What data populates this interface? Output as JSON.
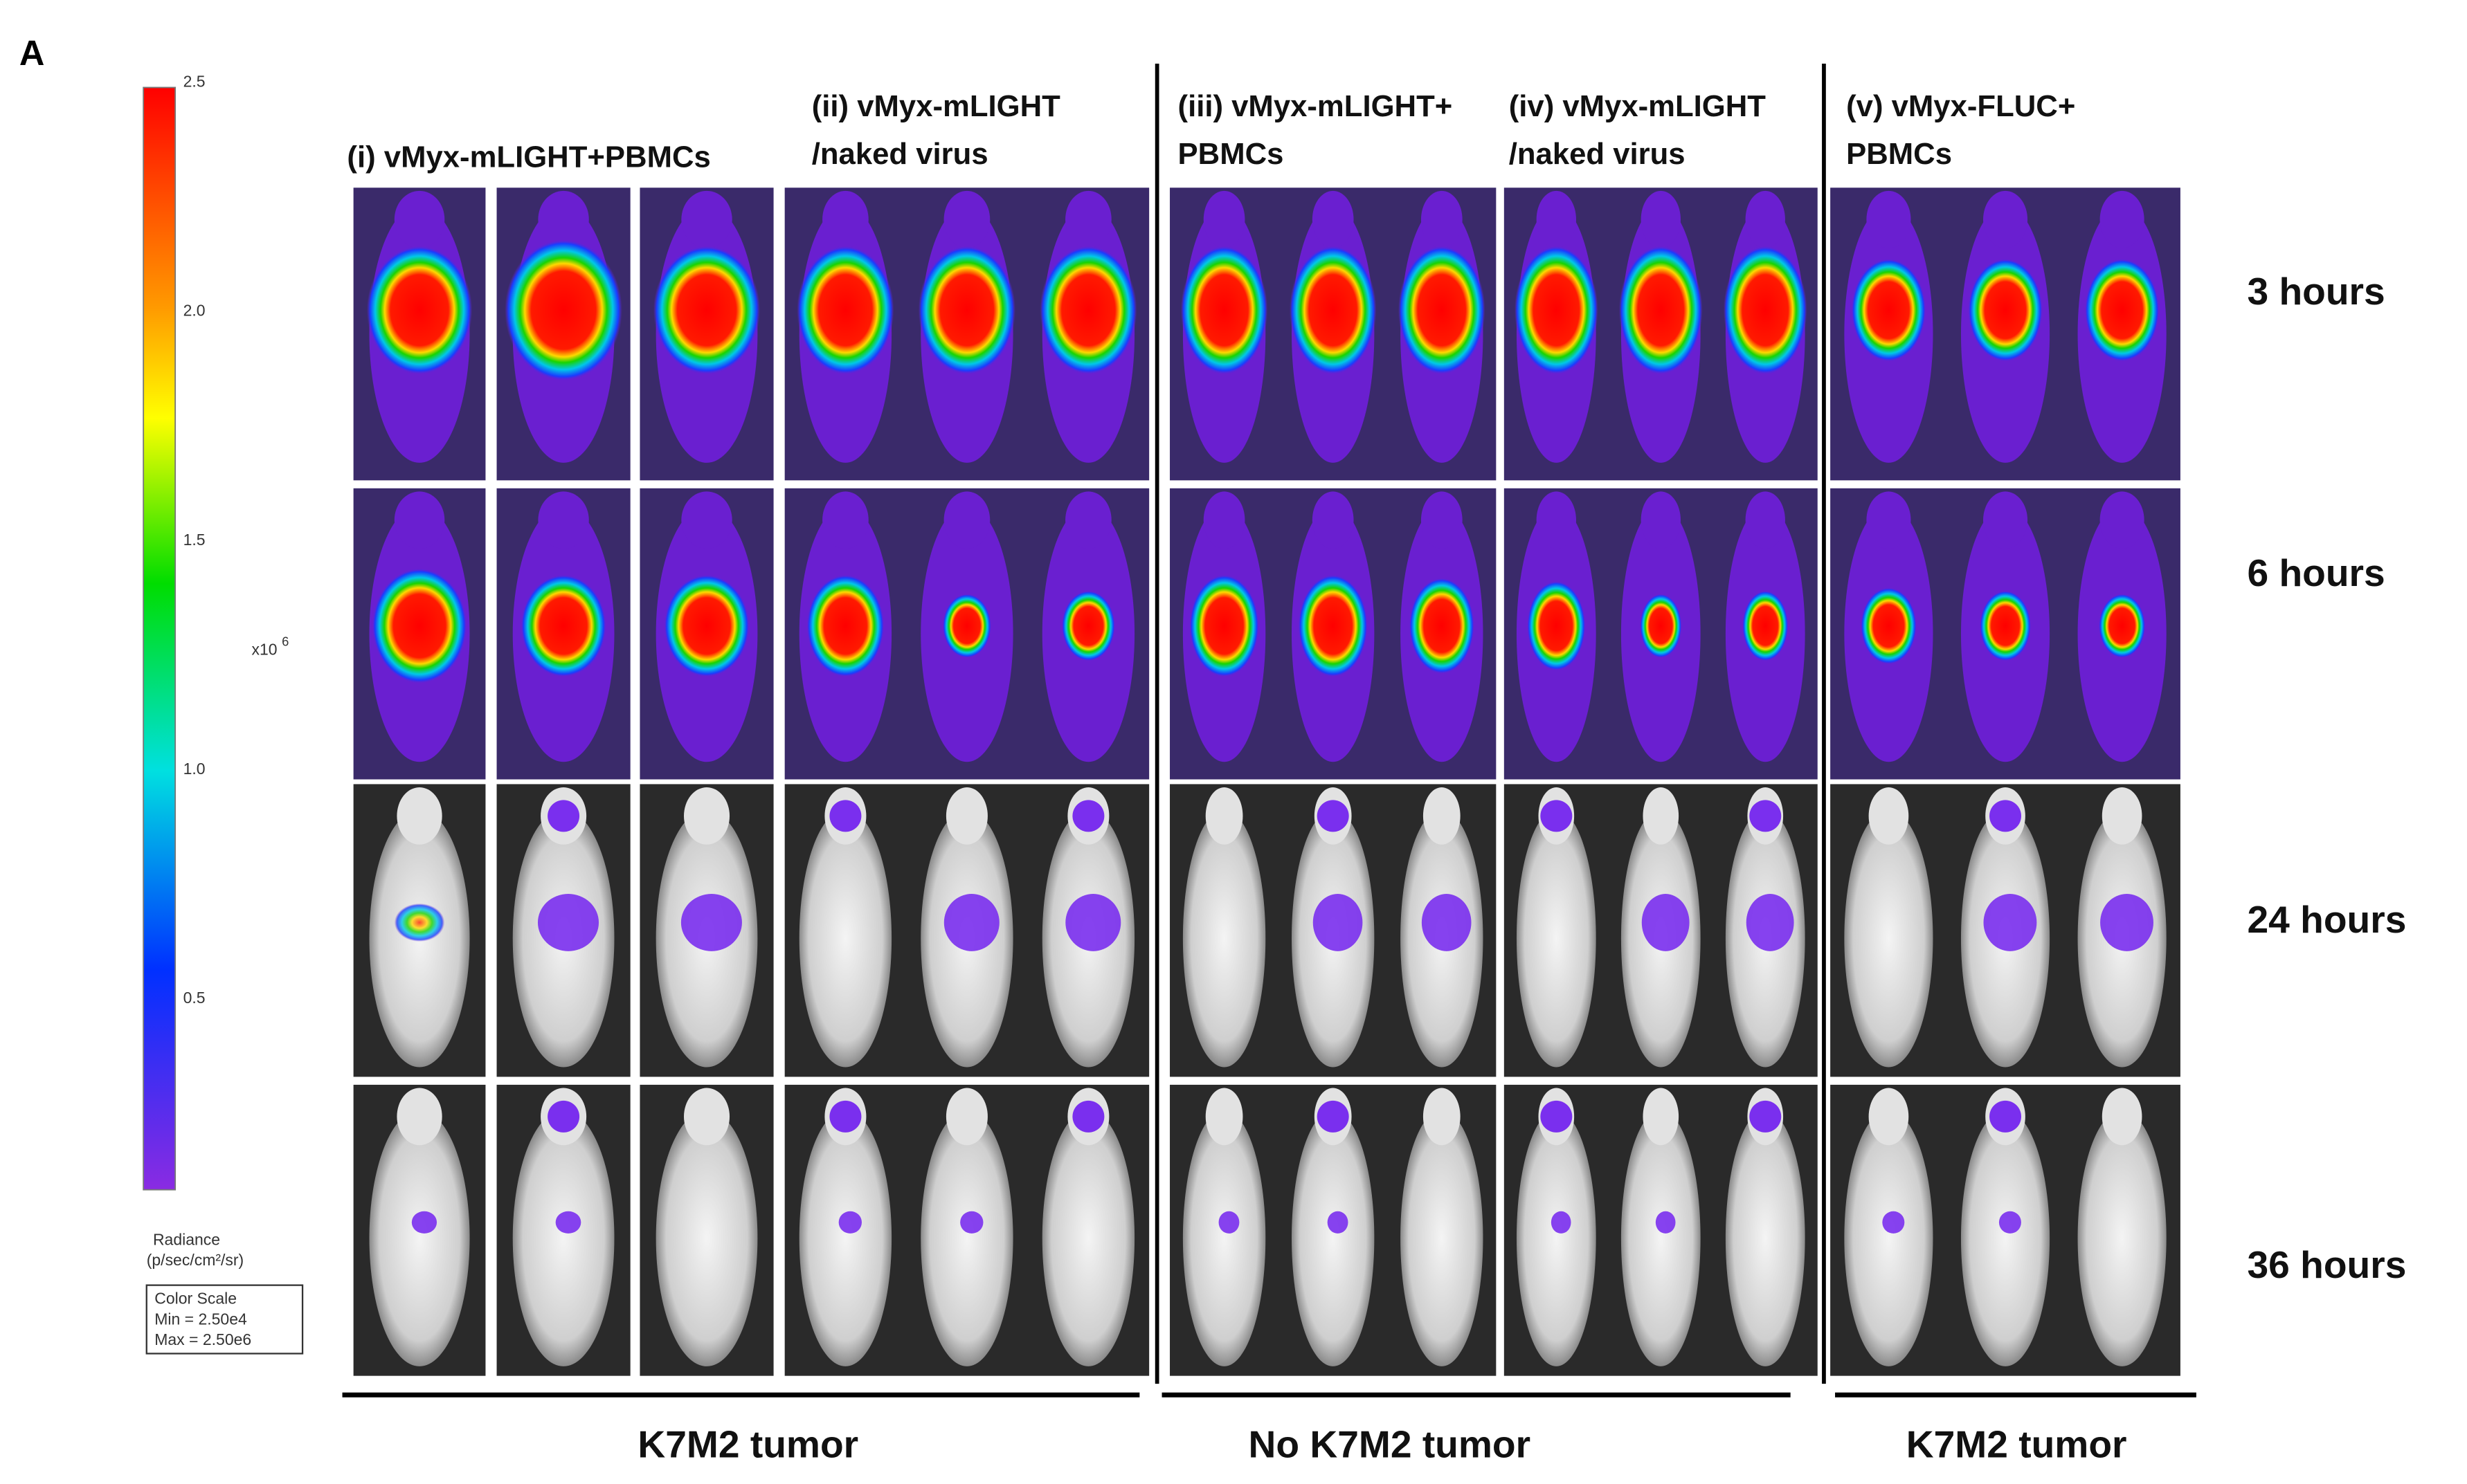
{
  "panel_label": "A",
  "color_bar": {
    "ticks": [
      "2.5",
      "2.0",
      "1.5",
      "1.0",
      "0.5"
    ],
    "multiplier": "x10",
    "exponent": "6",
    "unit_label": "Radiance",
    "unit": "(p/sec/cm²/sr)",
    "scale_box": [
      "Color Scale",
      "Min = 2.50e4",
      "Max = 2.50e6"
    ]
  },
  "groups": [
    {
      "lines": [
        "(i) vMyx-mLIGHT+PBMCs"
      ]
    },
    {
      "lines": [
        "(ii) vMyx-mLIGHT",
        "/naked virus"
      ]
    },
    {
      "lines": [
        "(iii) vMyx-mLIGHT+",
        "PBMCs"
      ]
    },
    {
      "lines": [
        "(iv) vMyx-mLIGHT",
        "/naked virus"
      ]
    },
    {
      "lines": [
        "(v) vMyx-FLUC+",
        "PBMCs"
      ]
    }
  ],
  "timepoints": [
    "3 hours",
    "6 hours",
    "24 hours",
    "36 hours"
  ],
  "conditions": [
    "K7M2 tumor",
    "No K7M2 tumor",
    "K7M2 tumor"
  ]
}
